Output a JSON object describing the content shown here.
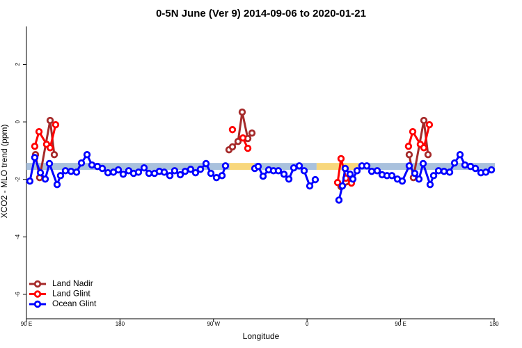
{
  "chart_data": {
    "type": "line",
    "title": "0-5N June (Ver 9)   2014-09-06 to 2020-01-21",
    "x_label": "Longitude",
    "y_label": "XCO2 - MLO trend (ppm)",
    "xlim": [
      90,
      540.7
    ],
    "ylim": [
      -6.85,
      3.32
    ],
    "xticks": [
      {
        "value": 90,
        "label": "90 E"
      },
      180,
      {
        "value": 270,
        "label": "90 W"
      },
      {
        "value": 360,
        "label": "0"
      },
      {
        "value": 450,
        "label": "90 E"
      },
      {
        "value": 540,
        "label": "180"
      }
    ],
    "yticks": [
      -6,
      -4,
      -2,
      0,
      2
    ],
    "legend": "bottom-left",
    "band": {
      "y": -1.55,
      "segments": [
        {
          "xlim": [
            90,
            285.5
          ],
          "color": "#a9c1dd"
        },
        {
          "xlim": [
            285.5,
            309
          ],
          "color": "#f8d77c"
        },
        {
          "xlim": [
            309,
            369.2
          ],
          "color": "#a9c1dd"
        },
        {
          "xlim": [
            369.2,
            409.4
          ],
          "color": "#f8d77c"
        },
        {
          "xlim": [
            409.4,
            540.7
          ],
          "color": "#a9c1dd"
        }
      ]
    },
    "series": [
      {
        "name": "Land Nadir",
        "color": "#a52a2a",
        "x": [
          98.7,
          102.7,
          112.8,
          116.8,
          null,
          284.9,
          288.2,
          293.6,
          297.6,
          303.0,
          307.0,
          null,
          392.7,
          402.7,
          null,
          458.3,
          462.3,
          472.4,
          476.4
        ],
        "values": [
          -1.14,
          -1.94,
          0.05,
          -1.14,
          null,
          -0.97,
          -0.87,
          -0.68,
          0.34,
          -0.58,
          -0.39,
          null,
          -2.25,
          -2.11,
          null,
          -1.14,
          -1.94,
          0.05,
          -1.14
        ]
      },
      {
        "name": "Land Glint",
        "color": "#ff0000",
        "x": [
          98.0,
          102.1,
          109.4,
          112.8,
          118.1,
          null,
          288.2,
          null,
          298.3,
          303.0,
          null,
          389.4,
          392.7,
          397.4,
          402.7,
          null,
          457.6,
          461.7,
          469.0,
          472.4,
          477.7
        ],
        "values": [
          -0.85,
          -0.34,
          -0.78,
          -0.9,
          -0.1,
          null,
          -0.27,
          null,
          -0.56,
          -0.92,
          null,
          -2.11,
          -1.28,
          -1.96,
          -2.13,
          null,
          -0.85,
          -0.34,
          -0.78,
          -0.9,
          -0.1
        ]
      },
      {
        "name": "Ocean Glint",
        "color": "#0000ff",
        "x": [
          93.3,
          98.0,
          103.4,
          108.1,
          112.1,
          119.5,
          122.8,
          127.5,
          132.9,
          138.2,
          142.9,
          148.3,
          153.0,
          158.3,
          163.0,
          168.4,
          173.7,
          178.4,
          183.1,
          188.4,
          193.1,
          197.8,
          203.2,
          207.9,
          213.2,
          217.9,
          222.6,
          228.0,
          232.6,
          238.0,
          242.7,
          248.0,
          252.7,
          257.4,
          262.8,
          267.5,
          272.8,
          278.2,
          281.5,
          null,
          309.7,
          313.0,
          317.7,
          323.1,
          327.7,
          332.4,
          337.8,
          342.5,
          347.2,
          352.5,
          357.2,
          362.6,
          367.9,
          null,
          390.7,
          394.0,
          396.7,
          401.4,
          404.1,
          408.1,
          412.8,
          417.5,
          422.2,
          427.5,
          432.2,
          436.9,
          441.6,
          446.9,
          451.6,
          458.3,
          463.7,
          467.7,
          471.7,
          478.4,
          481.8,
          486.5,
          491.8,
          497.2,
          501.9,
          507.2,
          511.9,
          517.3,
          522.0,
          527.3,
          532.0,
          537.4
        ],
        "values": [
          -2.06,
          -1.24,
          -1.77,
          -1.99,
          -1.45,
          -2.18,
          -1.87,
          -1.7,
          -1.72,
          -1.75,
          -1.43,
          -1.14,
          -1.5,
          -1.55,
          -1.62,
          -1.77,
          -1.75,
          -1.67,
          -1.82,
          -1.7,
          -1.79,
          -1.75,
          -1.6,
          -1.79,
          -1.79,
          -1.72,
          -1.75,
          -1.87,
          -1.7,
          -1.84,
          -1.72,
          -1.65,
          -1.77,
          -1.65,
          -1.45,
          -1.79,
          -1.94,
          -1.87,
          -1.53,
          null,
          -1.62,
          -1.55,
          -1.89,
          -1.67,
          -1.7,
          -1.7,
          -1.82,
          -1.99,
          -1.6,
          -1.53,
          -1.7,
          -2.23,
          -2.01,
          null,
          -2.72,
          -2.23,
          -1.62,
          -1.82,
          -1.99,
          -1.7,
          -1.53,
          -1.53,
          -1.72,
          -1.7,
          -1.84,
          -1.87,
          -1.87,
          -1.99,
          -2.06,
          -1.53,
          -1.79,
          -1.99,
          -1.45,
          -2.18,
          -1.87,
          -1.7,
          -1.72,
          -1.75,
          -1.43,
          -1.14,
          -1.5,
          -1.55,
          -1.62,
          -1.77,
          -1.75,
          -1.67
        ]
      }
    ]
  }
}
